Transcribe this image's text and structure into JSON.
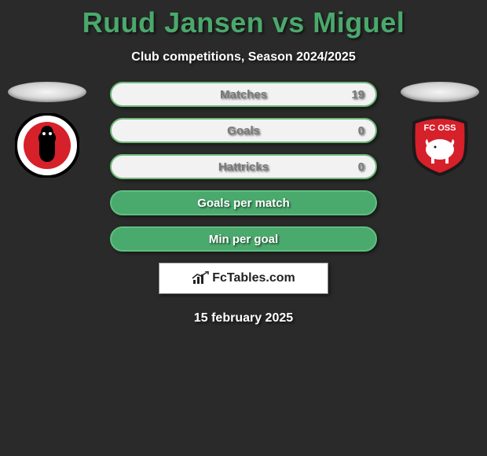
{
  "title": "Ruud Jansen vs Miguel",
  "subtitle": "Club competitions, Season 2024/2025",
  "date": "15 february 2025",
  "brand": "FcTables.com",
  "colors": {
    "title": "#4aa96c",
    "background": "#2a2a2a",
    "stat_white_bg": "#f2f2f2",
    "stat_white_border": "#6db878",
    "stat_white_text": "#7a7a7a",
    "stat_green_bg": "#4aa96c",
    "stat_green_border": "#5fbf80",
    "stat_green_text": "#ffffff"
  },
  "left_club": {
    "name": "Helmond Sport",
    "bg": "#ffffff",
    "ring": "#000000",
    "accent": "#d6202a"
  },
  "right_club": {
    "name": "FC Oss",
    "bg": "#d6202a",
    "ring": "#1a1a1a",
    "accent": "#ffffff",
    "label": "FC OSS"
  },
  "stats": [
    {
      "label": "Matches",
      "value": "19",
      "variant": "white"
    },
    {
      "label": "Goals",
      "value": "0",
      "variant": "white"
    },
    {
      "label": "Hattricks",
      "value": "0",
      "variant": "white"
    },
    {
      "label": "Goals per match",
      "value": "",
      "variant": "green"
    },
    {
      "label": "Min per goal",
      "value": "",
      "variant": "green"
    }
  ]
}
